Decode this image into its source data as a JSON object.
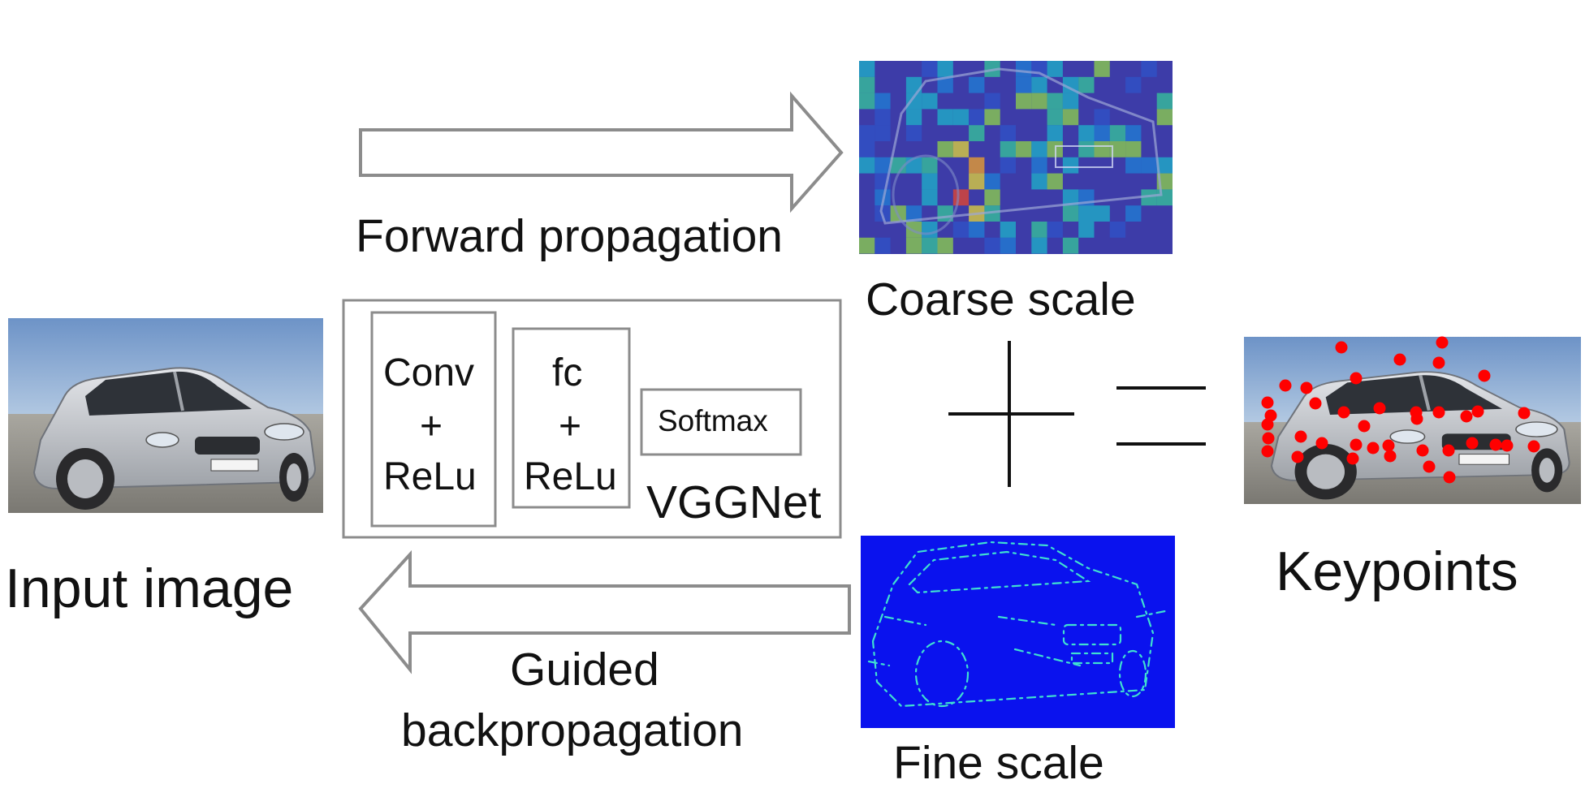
{
  "labels": {
    "forward": "Forward propagation",
    "coarse": "Coarse scale",
    "input": "Input image",
    "guided_1": "Guided",
    "guided_2": "backpropagation",
    "fine": "Fine scale",
    "keypoints": "Keypoints",
    "vggnet": "VGGNet"
  },
  "network": {
    "conv": [
      "Conv",
      "+",
      "ReLu"
    ],
    "fc": [
      "fc",
      "+",
      "ReLu"
    ],
    "softmax": "Softmax"
  },
  "operators": {
    "plus": "+",
    "equals": "="
  },
  "colors": {
    "arrow_stroke": "#8c8c8c",
    "box_stroke": "#8c8c8c",
    "heatmap_bg": "#3d3ca8",
    "edge_bg": "#0a12ee",
    "edge_line": "#3fe0d0",
    "keypoint": "#ff0000",
    "car_body": "#c9ccd1"
  },
  "images": [
    "input-car-photo",
    "coarse-heatmap",
    "fine-edge-map",
    "keypoints-car-photo"
  ]
}
